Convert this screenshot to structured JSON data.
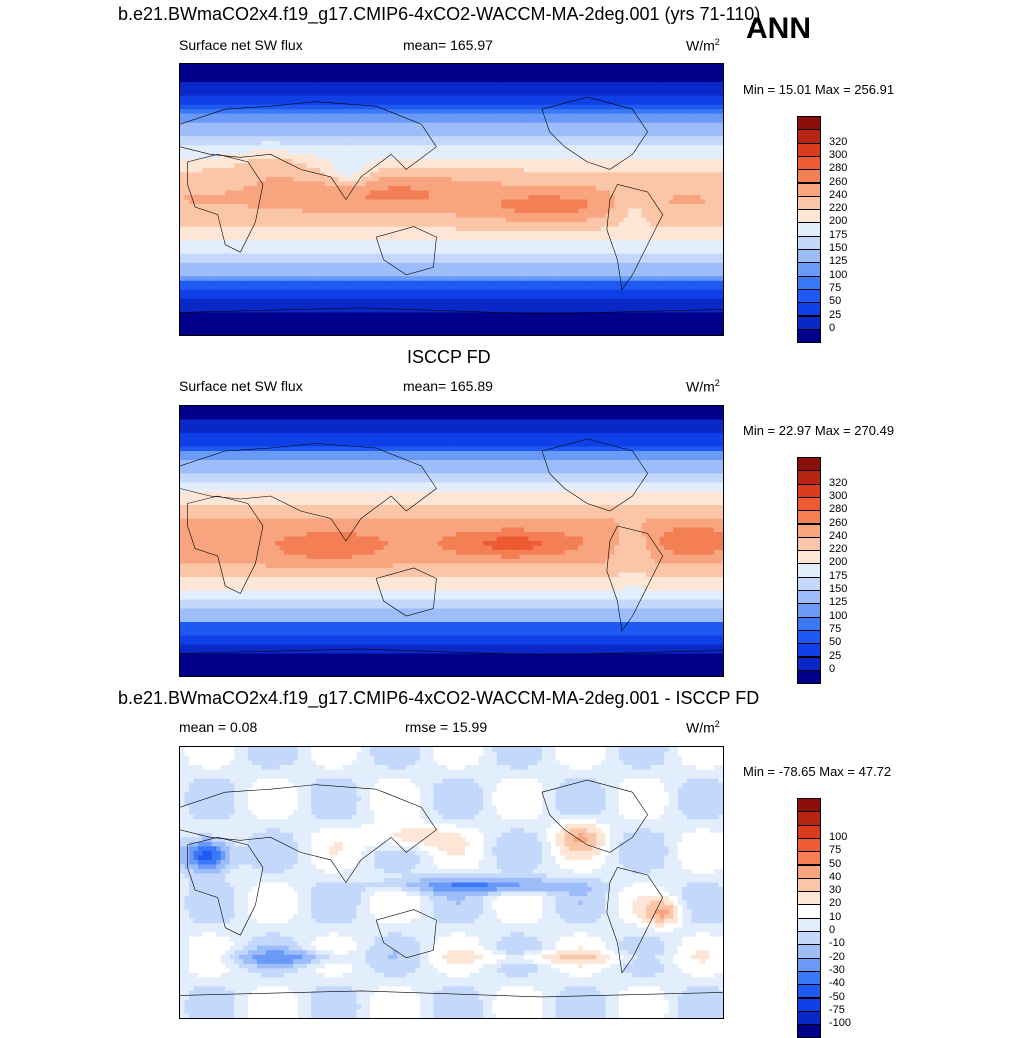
{
  "season": "ANN",
  "panels": [
    {
      "title": "b.e21.BWmaCO2x4.f19_g17.CMIP6-4xCO2-WACCM-MA-2deg.001 (yrs 71-110)",
      "left_label": "Surface net SW flux",
      "center_label": "mean= 165.97",
      "units": "W/m",
      "units_sup": "2",
      "stats": "Min =  15.01 Max = 256.91",
      "field": "model",
      "colorbar": {
        "colors": [
          "#00008a",
          "#0a28c8",
          "#0f3fe6",
          "#1e5af2",
          "#3a78f5",
          "#6a9af7",
          "#9dbdfa",
          "#c4d8fc",
          "#e3eefd",
          "#fde6d6",
          "#fbc6a8",
          "#f8a47e",
          "#f47f55",
          "#ee5a32",
          "#d93c1c",
          "#b52512",
          "#8a0f08"
        ],
        "labels": [
          "0",
          "25",
          "50",
          "75",
          "100",
          "125",
          "150",
          "175",
          "200",
          "220",
          "240",
          "260",
          "280",
          "300",
          "320"
        ]
      }
    },
    {
      "title": "ISCCP FD",
      "left_label": "Surface net SW flux",
      "center_label": "mean= 165.89",
      "units": "W/m",
      "units_sup": "2",
      "stats": "Min =  22.97 Max = 270.49",
      "field": "obs",
      "colorbar": {
        "colors": [
          "#00008a",
          "#0a28c8",
          "#0f3fe6",
          "#1e5af2",
          "#3a78f5",
          "#6a9af7",
          "#9dbdfa",
          "#c4d8fc",
          "#e3eefd",
          "#fde6d6",
          "#fbc6a8",
          "#f8a47e",
          "#f47f55",
          "#ee5a32",
          "#d93c1c",
          "#b52512",
          "#8a0f08"
        ],
        "labels": [
          "0",
          "25",
          "50",
          "75",
          "100",
          "125",
          "150",
          "175",
          "200",
          "220",
          "240",
          "260",
          "280",
          "300",
          "320"
        ]
      }
    },
    {
      "title": "b.e21.BWmaCO2x4.f19_g17.CMIP6-4xCO2-WACCM-MA-2deg.001 - ISCCP FD",
      "left_label": "mean =   0.08",
      "center_label": "rmse =  15.99",
      "units": "W/m",
      "units_sup": "2",
      "stats": "Min = -78.65 Max =  47.72",
      "field": "diff",
      "colorbar": {
        "colors": [
          "#00008a",
          "#0a28c8",
          "#0f3fe6",
          "#1e5af2",
          "#3a78f5",
          "#6a9af7",
          "#9dbdfa",
          "#c4d8fc",
          "#e3eefd",
          "#ffffff",
          "#fde6d6",
          "#fbc6a8",
          "#f8a47e",
          "#f47f55",
          "#ee5a32",
          "#d93c1c",
          "#b52512",
          "#8a0f08"
        ],
        "labels": [
          "-100",
          "-75",
          "-50",
          "-40",
          "-30",
          "-20",
          "-10",
          "0",
          "10",
          "20",
          "30",
          "40",
          "50",
          "75",
          "100"
        ]
      }
    }
  ]
}
